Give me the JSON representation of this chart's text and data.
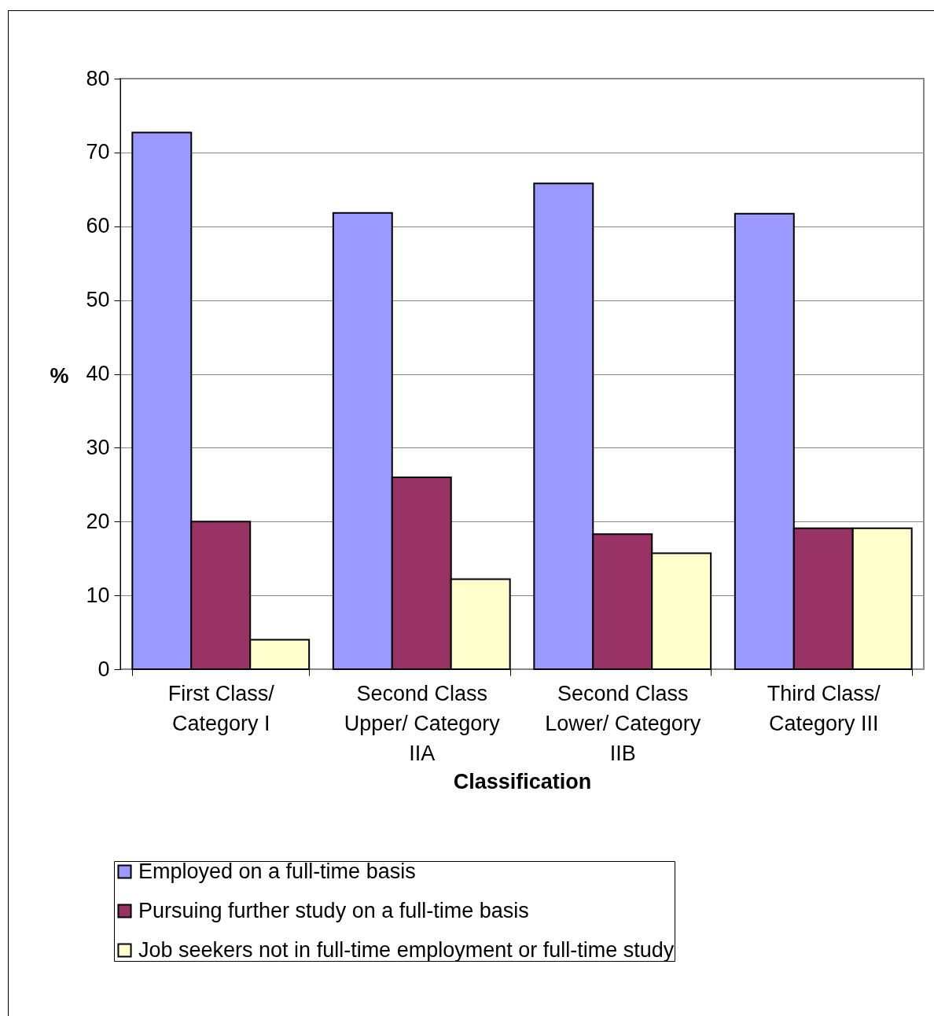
{
  "chart_data": {
    "type": "bar",
    "xlabel": "Classification",
    "ylabel": "%",
    "categories": [
      "First Class/ Category I",
      "Second Class Upper/ Category IIA",
      "Second Class Lower/ Category IIB",
      "Third Class/ Category III"
    ],
    "series": [
      {
        "name": "Employed on a full-time basis",
        "color": "#9999ff",
        "values": [
          72.7,
          61.8,
          65.8,
          61.7
        ]
      },
      {
        "name": "Pursuing further study on a full-time basis",
        "color": "#993366",
        "values": [
          20,
          26,
          18.3,
          19.1
        ]
      },
      {
        "name": "Job seekers not in full-time employment or full-time study",
        "color": "#ffffcc",
        "values": [
          4,
          12.2,
          15.7,
          19.1
        ]
      }
    ],
    "ylim": [
      0,
      80
    ],
    "yticks": [
      0,
      10,
      20,
      30,
      40,
      50,
      60,
      70,
      80
    ],
    "grid": "y",
    "legend": "bottom"
  }
}
